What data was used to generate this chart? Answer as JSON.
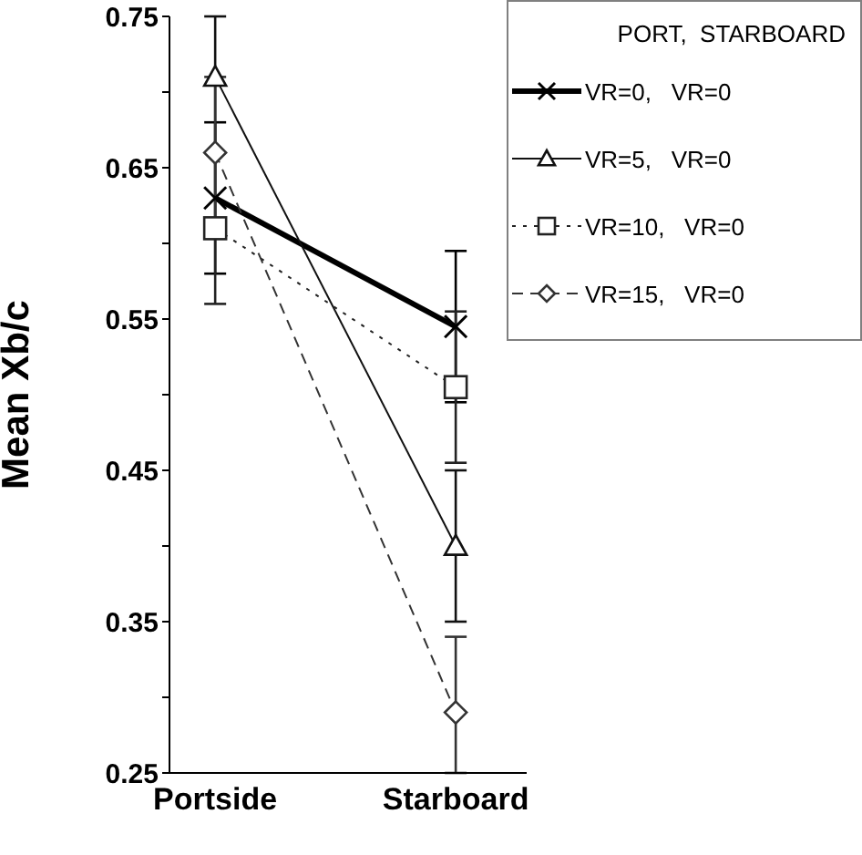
{
  "chart_data": {
    "type": "line",
    "ylabel": "Mean Xb/c",
    "legend_title": "PORT,  STARBOARD",
    "categories": [
      "Portside",
      "Starboard"
    ],
    "ylim": [
      0.25,
      0.75
    ],
    "yticks": [
      0.25,
      {
        "value": 0.3,
        "label": null
      },
      0.35,
      {
        "value": 0.4,
        "label": null
      },
      0.45,
      {
        "value": 0.5,
        "label": null
      },
      0.55,
      {
        "value": 0.6,
        "label": null
      },
      0.65,
      {
        "value": 0.7,
        "label": null
      },
      0.75
    ],
    "grid": false,
    "legend": "top right",
    "series": [
      {
        "name": "VR=0,   VR=0",
        "color": "#000000",
        "values": [
          0.63,
          0.545
        ],
        "errors": [
          0.05,
          0.05
        ],
        "marker": "cross",
        "line_style": "solid"
      },
      {
        "name": "VR=5,   VR=0",
        "color": "#111111",
        "values": [
          0.71,
          0.4
        ],
        "errors": [
          [
            0.66,
            0.75
          ],
          0.05
        ],
        "marker": "triangle",
        "line_style": "solid"
      },
      {
        "name": "VR=10,   VR=0",
        "color": "#222222",
        "values": [
          0.61,
          0.505
        ],
        "errors": [
          0.05,
          0.05
        ],
        "marker": "square",
        "line_style": "dotted"
      },
      {
        "name": "VR=15,   VR=0",
        "color": "#333333",
        "values": [
          0.66,
          0.29
        ],
        "errors": [
          0.05,
          [
            0.25,
            0.34
          ]
        ],
        "marker": "diamond",
        "line_style": "dashed"
      }
    ]
  }
}
